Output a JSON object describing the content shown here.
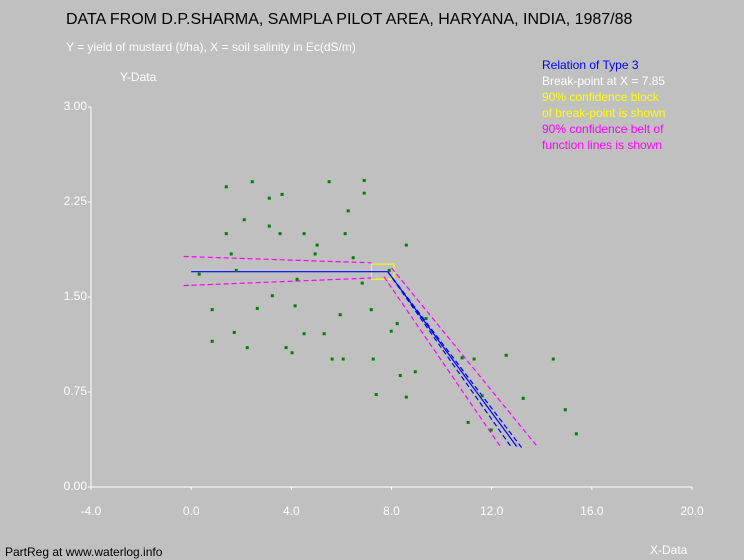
{
  "chart_data": {
    "type": "scatter",
    "title": "DATA FROM D.P.SHARMA, SAMPLA PILOT AREA, HARYANA, INDIA, 1987/88",
    "subtitle": "Y = yield of mustard (t/ha), X = soil salinity in Ec(dS/m)",
    "annotations": [
      {
        "text": "Relation of Type 3",
        "color": "#0000ff"
      },
      {
        "text": "Break-point at X =  7.85",
        "color": "#ffffff"
      },
      {
        "text": "90% confidence block",
        "color": "#ffff00"
      },
      {
        "text": "of break-point is shown",
        "color": "#ffff00"
      },
      {
        "text": "90% confidence belt of",
        "color": "#ff00ff"
      },
      {
        "text": "function lines is shown",
        "color": "#ff00ff"
      }
    ],
    "y_label": "Y-Data",
    "x_label": "X-Data",
    "footer": "PartReg at www.waterlog.info",
    "xlim": [
      -4,
      20
    ],
    "ylim": [
      0,
      3
    ],
    "xticks": [
      {
        "value": -4,
        "label": "-4.0"
      },
      {
        "value": 0,
        "label": "0.0"
      },
      {
        "value": 4,
        "label": "4.0"
      },
      {
        "value": 8,
        "label": "8.0"
      },
      {
        "value": 12,
        "label": "12.0"
      },
      {
        "value": 16,
        "label": "16.0"
      },
      {
        "value": 20,
        "label": "20.0"
      }
    ],
    "yticks": [
      {
        "value": 0,
        "label": "0.00"
      },
      {
        "value": 0.75,
        "label": "0.75"
      },
      {
        "value": 1.5,
        "label": "1.50"
      },
      {
        "value": 2.25,
        "label": "2.25"
      },
      {
        "value": 3,
        "label": "3.00"
      }
    ],
    "point_color": "#008000",
    "x": [
      0.32,
      0.84,
      0.84,
      1.4,
      1.4,
      1.6,
      1.72,
      1.8,
      2.12,
      2.24,
      2.44,
      2.64,
      3.12,
      3.24,
      3.12,
      3.55,
      3.63,
      3.79,
      4.03,
      4.15,
      4.23,
      4.51,
      4.51,
      4.95,
      5.03,
      5.31,
      5.51,
      5.63,
      5.95,
      6.07,
      6.15,
      6.27,
      6.47,
      6.83,
      6.91,
      6.91,
      7.19,
      7.27,
      7.39,
      7.91,
      7.99,
      8.23,
      8.35,
      8.59,
      8.59,
      8.95,
      9.38,
      10.82,
      11.06,
      11.3,
      11.62,
      11.98,
      12.58,
      13.26,
      14.46,
      14.94,
      15.38
    ],
    "values": [
      1.68,
      1.4,
      1.15,
      2.0,
      2.37,
      1.84,
      1.22,
      1.71,
      2.11,
      1.1,
      2.41,
      1.41,
      2.28,
      1.51,
      2.06,
      2.0,
      2.31,
      1.1,
      1.06,
      1.43,
      1.64,
      2.0,
      1.21,
      1.84,
      1.91,
      1.21,
      2.41,
      1.01,
      1.36,
      1.01,
      2.0,
      2.18,
      1.81,
      1.61,
      2.32,
      2.42,
      1.4,
      1.01,
      0.73,
      1.71,
      1.23,
      1.29,
      0.88,
      1.91,
      0.71,
      0.91,
      1.33,
      1.02,
      0.51,
      1.01,
      0.72,
      0.45,
      1.04,
      0.7,
      1.01,
      0.61,
      0.42
    ],
    "lines": [
      {
        "color": "#0000ff",
        "dash": false,
        "x": [
          0,
          7.85,
          13.0
        ],
        "y": [
          1.7,
          1.7,
          0.32
        ]
      },
      {
        "color": "#0000ff",
        "dash": true,
        "x": [
          7.85,
          13.2
        ],
        "y": [
          1.7,
          0.31
        ]
      },
      {
        "color": "#0000ff",
        "dash": true,
        "x": [
          7.85,
          12.8
        ],
        "y": [
          1.7,
          0.31
        ]
      },
      {
        "color": "#ff00ff",
        "dash": true,
        "x": [
          -0.3,
          7.2
        ],
        "y": [
          1.82,
          1.77
        ]
      },
      {
        "color": "#ff00ff",
        "dash": true,
        "x": [
          -0.3,
          7.2
        ],
        "y": [
          1.59,
          1.65
        ]
      },
      {
        "color": "#ff00ff",
        "dash": true,
        "x": [
          8.0,
          13.86
        ],
        "y": [
          1.73,
          0.31
        ]
      },
      {
        "color": "#ff00ff",
        "dash": true,
        "x": [
          7.7,
          12.38
        ],
        "y": [
          1.66,
          0.31
        ]
      }
    ],
    "confidence_block": {
      "xlim": [
        7.2,
        8.1
      ],
      "ylim": [
        1.64,
        1.76
      ],
      "color": "#ffff00"
    }
  }
}
